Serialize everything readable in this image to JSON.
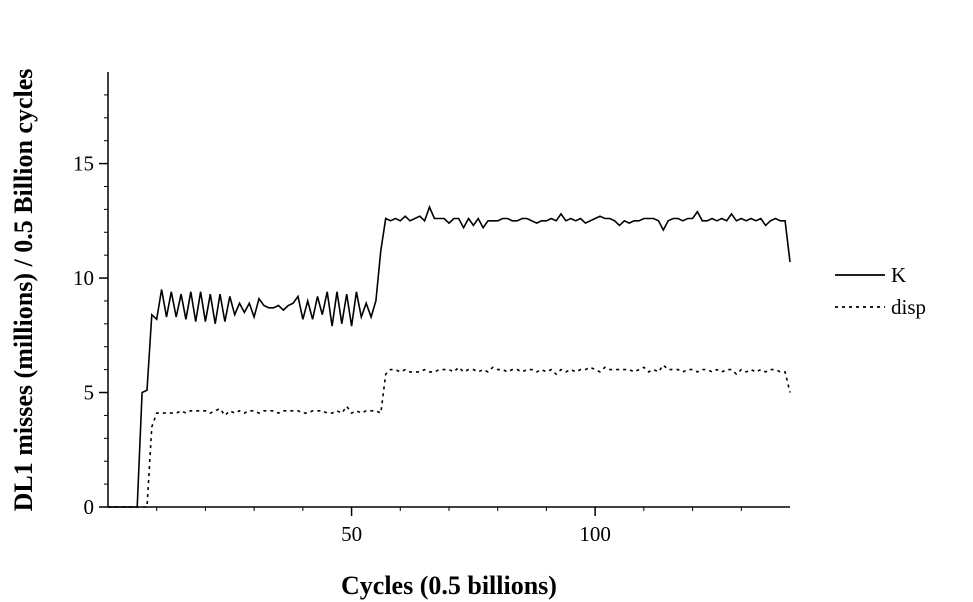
{
  "chart_data": {
    "type": "line",
    "title": "",
    "xlabel": "Cycles (0.5 billions)",
    "ylabel": "DL1 misses (millions) / 0.5 Billion cycles",
    "xlim": [
      0,
      140
    ],
    "ylim": [
      0,
      19
    ],
    "xticks": [
      50,
      100
    ],
    "xtick_labels": [
      "50",
      "100"
    ],
    "yticks": [
      0,
      5,
      10,
      15
    ],
    "ytick_labels": [
      "0",
      "5",
      "10",
      "15"
    ],
    "grid": false,
    "legend_position": "right",
    "series": [
      {
        "name": "K",
        "style": "solid",
        "color": "#000000",
        "x": [
          0,
          1,
          2,
          3,
          4,
          5,
          6,
          7,
          8,
          9,
          10,
          11,
          12,
          13,
          14,
          15,
          16,
          17,
          18,
          19,
          20,
          21,
          22,
          23,
          24,
          25,
          26,
          27,
          28,
          29,
          30,
          31,
          32,
          33,
          34,
          35,
          36,
          37,
          38,
          39,
          40,
          41,
          42,
          43,
          44,
          45,
          46,
          47,
          48,
          49,
          50,
          51,
          52,
          53,
          54,
          55,
          56,
          57,
          58,
          59,
          60,
          61,
          62,
          63,
          64,
          65,
          66,
          67,
          68,
          69,
          70,
          71,
          72,
          73,
          74,
          75,
          76,
          77,
          78,
          79,
          80,
          81,
          82,
          83,
          84,
          85,
          86,
          87,
          88,
          89,
          90,
          91,
          92,
          93,
          94,
          95,
          96,
          97,
          98,
          99,
          100,
          101,
          102,
          103,
          104,
          105,
          106,
          107,
          108,
          109,
          110,
          111,
          112,
          113,
          114,
          115,
          116,
          117,
          118,
          119,
          120,
          121,
          122,
          123,
          124,
          125,
          126,
          127,
          128,
          129,
          130,
          131,
          132,
          133,
          134,
          135,
          136,
          137,
          138,
          139,
          140
        ],
        "values": [
          0,
          0,
          0,
          0,
          0,
          0,
          0,
          5,
          5.1,
          8.4,
          8.2,
          9.5,
          8.3,
          9.4,
          8.3,
          9.3,
          8.2,
          9.4,
          8.1,
          9.4,
          8.1,
          9.3,
          8.0,
          9.3,
          8.1,
          9.2,
          8.4,
          8.9,
          8.5,
          8.9,
          8.3,
          9.1,
          8.8,
          8.7,
          8.7,
          8.8,
          8.6,
          8.8,
          8.9,
          9.2,
          8.2,
          9.0,
          8.2,
          9.2,
          8.4,
          9.4,
          7.9,
          9.4,
          8.0,
          9.3,
          7.9,
          9.4,
          8.3,
          8.9,
          8.3,
          9.0,
          11.2,
          12.6,
          12.5,
          12.6,
          12.5,
          12.7,
          12.5,
          12.6,
          12.7,
          12.5,
          13.1,
          12.6,
          12.6,
          12.6,
          12.4,
          12.6,
          12.6,
          12.2,
          12.6,
          12.3,
          12.6,
          12.2,
          12.5,
          12.5,
          12.5,
          12.6,
          12.6,
          12.5,
          12.5,
          12.6,
          12.6,
          12.5,
          12.4,
          12.5,
          12.5,
          12.6,
          12.5,
          12.8,
          12.5,
          12.6,
          12.5,
          12.6,
          12.4,
          12.5,
          12.6,
          12.7,
          12.6,
          12.6,
          12.5,
          12.3,
          12.5,
          12.4,
          12.5,
          12.5,
          12.6,
          12.6,
          12.6,
          12.5,
          12.1,
          12.5,
          12.6,
          12.6,
          12.5,
          12.6,
          12.6,
          12.9,
          12.5,
          12.5,
          12.6,
          12.5,
          12.6,
          12.5,
          12.8,
          12.5,
          12.6,
          12.5,
          12.6,
          12.5,
          12.6,
          12.3,
          12.5,
          12.6,
          12.5,
          12.5,
          10.7
        ]
      },
      {
        "name": "disp",
        "style": "dotted",
        "color": "#000000",
        "x": [
          0,
          1,
          2,
          3,
          4,
          5,
          6,
          7,
          8,
          9,
          10,
          11,
          12,
          13,
          14,
          15,
          16,
          17,
          18,
          19,
          20,
          21,
          22,
          23,
          24,
          25,
          26,
          27,
          28,
          29,
          30,
          31,
          32,
          33,
          34,
          35,
          36,
          37,
          38,
          39,
          40,
          41,
          42,
          43,
          44,
          45,
          46,
          47,
          48,
          49,
          50,
          51,
          52,
          53,
          54,
          55,
          56,
          57,
          58,
          59,
          60,
          61,
          62,
          63,
          64,
          65,
          66,
          67,
          68,
          69,
          70,
          71,
          72,
          73,
          74,
          75,
          76,
          77,
          78,
          79,
          80,
          81,
          82,
          83,
          84,
          85,
          86,
          87,
          88,
          89,
          90,
          91,
          92,
          93,
          94,
          95,
          96,
          97,
          98,
          99,
          100,
          101,
          102,
          103,
          104,
          105,
          106,
          107,
          108,
          109,
          110,
          111,
          112,
          113,
          114,
          115,
          116,
          117,
          118,
          119,
          120,
          121,
          122,
          123,
          124,
          125,
          126,
          127,
          128,
          129,
          130,
          131,
          132,
          133,
          134,
          135,
          136,
          137,
          138,
          139,
          140
        ],
        "values": [
          0,
          0,
          0,
          0,
          0,
          0,
          0,
          0,
          0,
          3.5,
          4.1,
          4.1,
          4.1,
          4.1,
          4.1,
          4.2,
          4.1,
          4.2,
          4.2,
          4.2,
          4.2,
          4.1,
          4.2,
          4.3,
          4.0,
          4.2,
          4.1,
          4.2,
          4.1,
          4.2,
          4.2,
          4.1,
          4.2,
          4.2,
          4.2,
          4.1,
          4.2,
          4.2,
          4.2,
          4.2,
          4.1,
          4.1,
          4.2,
          4.2,
          4.2,
          4.1,
          4.1,
          4.2,
          4.1,
          4.4,
          4.1,
          4.2,
          4.1,
          4.2,
          4.2,
          4.2,
          4.1,
          5.8,
          6.0,
          6.0,
          5.9,
          6.0,
          5.9,
          5.9,
          5.9,
          6.0,
          5.9,
          5.9,
          6.0,
          6.0,
          6.0,
          5.9,
          6.1,
          5.9,
          6.0,
          6.0,
          5.9,
          6.0,
          5.9,
          6.1,
          6.0,
          6.0,
          5.9,
          6.0,
          6.0,
          5.9,
          6.0,
          6.0,
          5.9,
          6.0,
          5.9,
          6.0,
          5.8,
          6.0,
          5.9,
          6.0,
          5.9,
          6.0,
          6.0,
          6.1,
          6.0,
          5.9,
          6.1,
          6.0,
          6.0,
          6.0,
          6.0,
          6.0,
          5.9,
          6.0,
          6.1,
          5.9,
          6.0,
          5.9,
          6.2,
          6.0,
          6.0,
          6.0,
          5.9,
          6.0,
          6.0,
          5.9,
          6.0,
          6.0,
          5.9,
          6.0,
          5.9,
          6.0,
          6.0,
          5.8,
          6.0,
          5.9,
          6.0,
          5.9,
          6.0,
          5.9,
          6.0,
          6.0,
          5.9,
          5.9,
          5.0
        ]
      }
    ]
  }
}
